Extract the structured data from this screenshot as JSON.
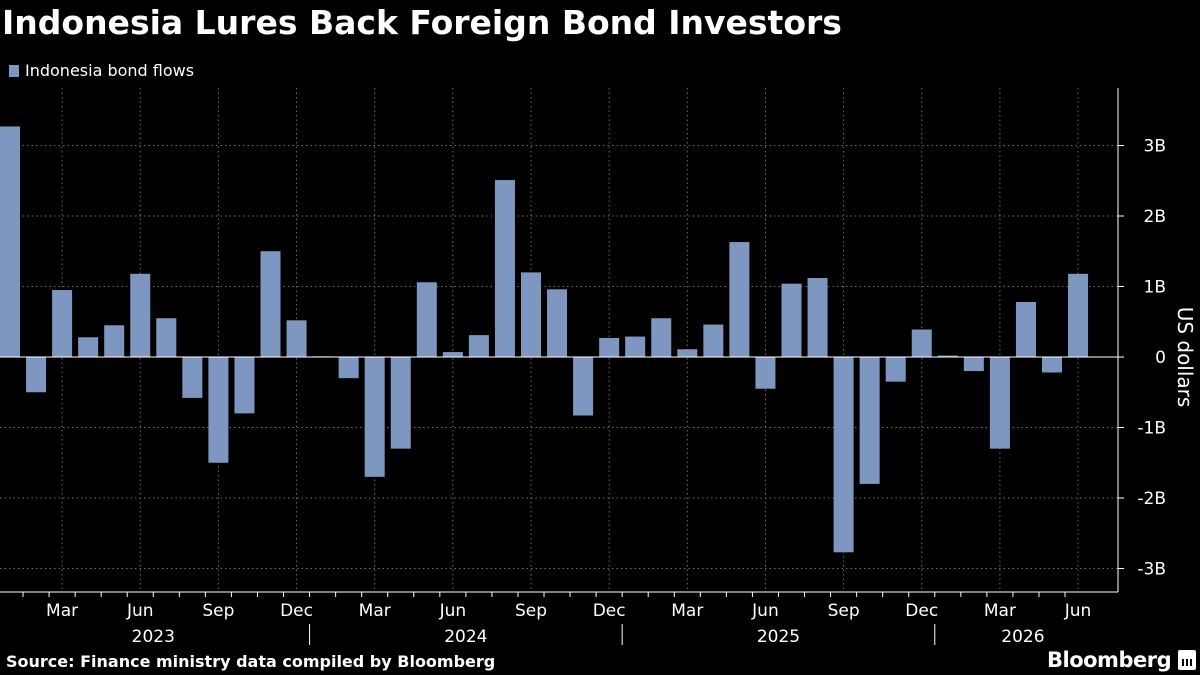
{
  "title": "Indonesia Lures Back Foreign Bond Investors",
  "source": "Source: Finance ministry data compiled by Bloomberg",
  "brand": "Bloomberg",
  "colors": {
    "bar": "#7e97c0",
    "background": "#000000",
    "grid": "#6b6b6b",
    "text": "#ffffff"
  },
  "chart_data": {
    "type": "bar",
    "legend": [
      "Indonesia bond flows"
    ],
    "legend_position": "top-left",
    "ylabel": "US dollars",
    "ylim": [
      -3.3,
      3.8
    ],
    "yticks": [
      3,
      2,
      1,
      0,
      -1,
      -2,
      -3
    ],
    "ytick_labels": [
      "3B",
      "2B",
      "1B",
      "0",
      "-1B",
      "-2B",
      "-3B"
    ],
    "y_axis_side": "right",
    "grid": true,
    "x_tick_labels": [
      "Mar",
      "Jun",
      "Sep",
      "Dec",
      "Mar",
      "Jun",
      "Sep",
      "Dec",
      "Mar",
      "Jun",
      "Sep",
      "Dec",
      "Mar",
      "Jun"
    ],
    "year_labels": [
      "2023",
      "2024",
      "2025",
      "2026"
    ],
    "categories": [
      "2023-01",
      "2023-02",
      "2023-03",
      "2023-04",
      "2023-05",
      "2023-06",
      "2023-07",
      "2023-08",
      "2023-09",
      "2023-10",
      "2023-11",
      "2023-12",
      "2024-01",
      "2024-02",
      "2024-03",
      "2024-04",
      "2024-05",
      "2024-06",
      "2024-07",
      "2024-08",
      "2024-09",
      "2024-10",
      "2024-11",
      "2024-12",
      "2025-01",
      "2025-02",
      "2025-03",
      "2025-04",
      "2025-05",
      "2025-06",
      "2025-07",
      "2025-08",
      "2025-09",
      "2025-10",
      "2025-11",
      "2025-12",
      "2026-01",
      "2026-02",
      "2026-03",
      "2026-04",
      "2026-05",
      "2026-06"
    ],
    "series": [
      {
        "name": "Indonesia bond flows",
        "values": [
          3.27,
          -0.5,
          0.95,
          0.28,
          0.45,
          1.18,
          0.55,
          -0.58,
          -1.5,
          -0.8,
          1.5,
          0.52,
          0.01,
          -0.3,
          -1.7,
          -1.3,
          1.06,
          0.07,
          0.31,
          2.51,
          1.2,
          0.96,
          -0.83,
          0.27,
          0.29,
          0.55,
          0.11,
          0.46,
          1.63,
          -0.45,
          1.04,
          1.12,
          -2.77,
          -1.8,
          -0.35,
          0.39,
          0.02,
          -0.2,
          -1.3,
          0.78,
          -0.22,
          1.18
        ]
      }
    ]
  }
}
